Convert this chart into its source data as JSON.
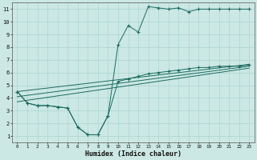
{
  "xlabel": "Humidex (Indice chaleur)",
  "bg_color": "#cce8e4",
  "grid_color": "#aad4d0",
  "line_color": "#1a6b60",
  "xlim": [
    -0.5,
    23.5
  ],
  "ylim": [
    0.5,
    11.5
  ],
  "xticks": [
    0,
    1,
    2,
    3,
    4,
    5,
    6,
    7,
    8,
    9,
    10,
    11,
    12,
    13,
    14,
    15,
    16,
    17,
    18,
    19,
    20,
    21,
    22,
    23
  ],
  "yticks": [
    1,
    2,
    3,
    4,
    5,
    6,
    7,
    8,
    9,
    10,
    11
  ],
  "line1_x": [
    0,
    1,
    2,
    3,
    4,
    5,
    6,
    7,
    8,
    9,
    10,
    11,
    12,
    13,
    14,
    15,
    16,
    17,
    18,
    19,
    20,
    21,
    22,
    23
  ],
  "line1_y": [
    4.5,
    3.6,
    3.4,
    3.4,
    3.3,
    3.2,
    1.7,
    1.1,
    1.1,
    2.6,
    8.2,
    9.7,
    9.2,
    11.2,
    11.1,
    11.0,
    11.1,
    10.8,
    11.0,
    11.0,
    11.0,
    11.0,
    11.0,
    11.0
  ],
  "line2_x": [
    0,
    1,
    2,
    3,
    4,
    5,
    6,
    7,
    8,
    9,
    10,
    11,
    12,
    13,
    14,
    15,
    16,
    17,
    18,
    19,
    20,
    21,
    22,
    23
  ],
  "line2_y": [
    4.5,
    3.6,
    3.4,
    3.4,
    3.3,
    3.2,
    1.7,
    1.1,
    1.1,
    2.6,
    5.3,
    5.5,
    5.7,
    5.9,
    6.0,
    6.1,
    6.2,
    6.3,
    6.4,
    6.4,
    6.5,
    6.5,
    6.5,
    6.6
  ],
  "line3_x": [
    0,
    23
  ],
  "line3_y": [
    4.5,
    6.65
  ],
  "line4_x": [
    0,
    23
  ],
  "line4_y": [
    4.1,
    6.5
  ],
  "line5_x": [
    0,
    23
  ],
  "line5_y": [
    3.7,
    6.35
  ]
}
